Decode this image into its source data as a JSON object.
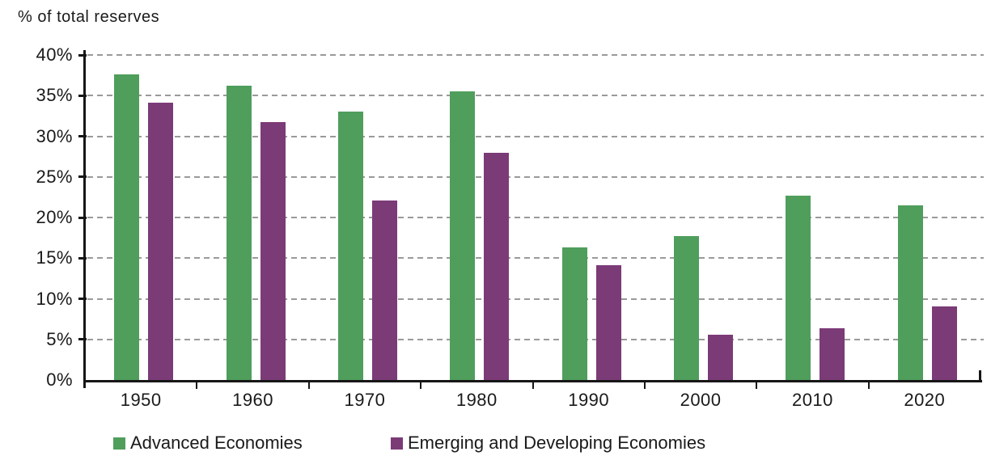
{
  "chart_data": {
    "type": "bar",
    "title": "% of total reserves",
    "categories": [
      "1950",
      "1960",
      "1970",
      "1980",
      "1990",
      "2000",
      "2010",
      "2020"
    ],
    "series": [
      {
        "name": "Advanced Economies",
        "color": "#4f9e5c",
        "values": [
          37.6,
          36.2,
          33.0,
          35.5,
          16.3,
          17.7,
          22.7,
          21.5
        ]
      },
      {
        "name": "Emerging and Developing Economies",
        "color": "#7b3b77",
        "values": [
          34.1,
          31.7,
          22.1,
          28.0,
          14.1,
          5.6,
          6.4,
          9.1
        ]
      }
    ],
    "ylim": [
      0,
      40
    ],
    "ytick_step": 5,
    "ytick_labels": [
      "0%",
      "5%",
      "10%",
      "15%",
      "20%",
      "25%",
      "30%",
      "35%",
      "40%"
    ],
    "grid": "horizontal-dashed",
    "legend_position": "bottom"
  },
  "colors": {
    "axis": "#161616",
    "grid": "#9a9a9a",
    "text": "#1a1a1a",
    "background": "#ffffff"
  }
}
